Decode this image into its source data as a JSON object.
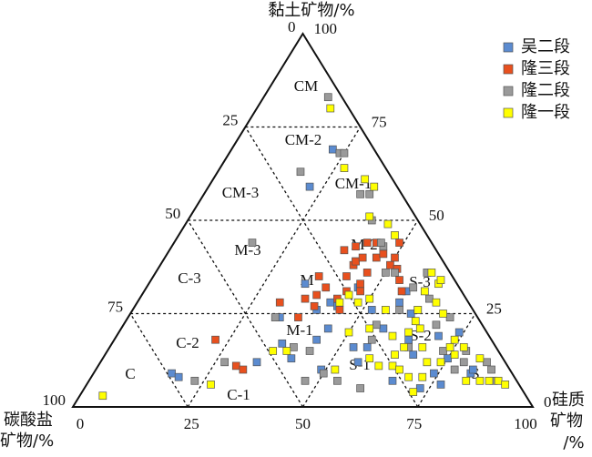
{
  "chart_data": {
    "type": "ternary",
    "axes": {
      "clay": {
        "title": "黏土矿物/%",
        "lim": [
          0,
          100
        ],
        "ticks": [
          0,
          25,
          50,
          75,
          100
        ]
      },
      "carbonate": {
        "title_lines": [
          "碳酸盐",
          "矿物/%"
        ],
        "lim": [
          0,
          100
        ],
        "ticks": [
          0,
          25,
          50,
          75,
          100
        ]
      },
      "silica": {
        "title_lines": [
          "硅质",
          "矿物",
          "/%"
        ],
        "lim": [
          0,
          100
        ],
        "ticks": [
          0,
          25,
          50,
          75,
          100
        ]
      }
    },
    "grid": true,
    "legend": "top-right",
    "regions": [
      "CM",
      "CM-2",
      "CM-1",
      "CM-3",
      "M-3",
      "M-2",
      "M",
      "M-1",
      "C-3",
      "C-2",
      "C-1",
      "C",
      "S-1",
      "S-2",
      "S-3",
      "S"
    ],
    "series": [
      {
        "name": "吴二段",
        "color": "#5b8bd0",
        "x": [
          17,
          19,
          34,
          33,
          37,
          41,
          34,
          40,
          42,
          44,
          44,
          49,
          42,
          52,
          56,
          57,
          57,
          64,
          67,
          73,
          74,
          75,
          74,
          82,
          82,
          77,
          56,
          45,
          46,
          57,
          70,
          61,
          66,
          53,
          22,
          22
        ],
        "values": [
          9,
          8,
          12,
          24,
          17,
          13,
          33,
          26,
          28,
          27,
          18,
          10,
          39,
          26,
          16,
          28,
          31,
          18,
          14,
          5,
          9,
          13,
          20,
          9,
          10,
          6,
          12,
          21,
          32,
          21,
          19,
          25,
          7,
          16,
          69,
          59
        ]
      },
      {
        "name": "隆三段",
        "color": "#e8501e",
        "x": [
          31,
          37,
          36,
          38,
          36,
          39,
          43,
          45,
          42,
          42,
          42,
          38,
          40,
          43,
          46,
          46,
          42,
          46,
          47,
          44,
          50,
          50,
          49,
          52,
          54,
          56,
          22,
          30,
          32,
          47,
          44,
          39
        ],
        "values": [
          28,
          24,
          29,
          30,
          35,
          32,
          29,
          26,
          35,
          38,
          39,
          42,
          43,
          40,
          36,
          33,
          44,
          40,
          41,
          44,
          38,
          40,
          44,
          37,
          34,
          31,
          18,
          11,
          10,
          31,
          31,
          27
        ]
      },
      {
        "name": "隆二段",
        "color": "#9a9a9a",
        "x": [
          14,
          24,
          25,
          18,
          34,
          36,
          17,
          32,
          40,
          44,
          47,
          54,
          60,
          56,
          55,
          50,
          52,
          58,
          62,
          59,
          63,
          68,
          70,
          78,
          79,
          84,
          86,
          88,
          27,
          23,
          50,
          46,
          40,
          45,
          58,
          78,
          65,
          73
        ],
        "values": [
          83,
          68,
          68,
          63,
          57,
          57,
          44,
          24,
          16,
          15,
          7,
          7,
          5,
          18,
          22,
          36,
          36,
          26,
          26,
          36,
          29,
          22,
          24,
          15,
          12,
          12,
          10,
          7,
          12,
          7,
          9,
          43,
          50,
          44,
          32,
          10,
          16,
          15
        ]
      },
      {
        "name": "隆一段",
        "color": "#ffff00",
        "x": [
          5,
          27,
          16,
          27,
          33,
          36,
          39,
          44,
          47,
          48,
          50,
          54,
          58,
          61,
          64,
          66,
          64,
          63,
          63,
          62,
          61,
          65,
          63,
          60,
          63,
          68,
          74,
          74,
          77,
          82,
          87,
          89,
          91,
          85,
          82,
          72,
          72,
          69,
          63,
          60,
          55,
          71,
          74,
          76,
          65,
          68,
          44,
          45,
          52,
          50,
          36,
          39
        ],
        "values": [
          3,
          6,
          80,
          64,
          61,
          59,
          51,
          49,
          46,
          28,
          29,
          21,
          13,
          11,
          11,
          10,
          16,
          20,
          23,
          26,
          31,
          28,
          33,
          36,
          34,
          25,
          16,
          18,
          16,
          13,
          7,
          7,
          6,
          7,
          7,
          8,
          4,
          8,
          14,
          19,
          26,
          12,
          12,
          14,
          21,
          16,
          28,
          30,
          10,
          20,
          15,
          15
        ]
      }
    ]
  }
}
